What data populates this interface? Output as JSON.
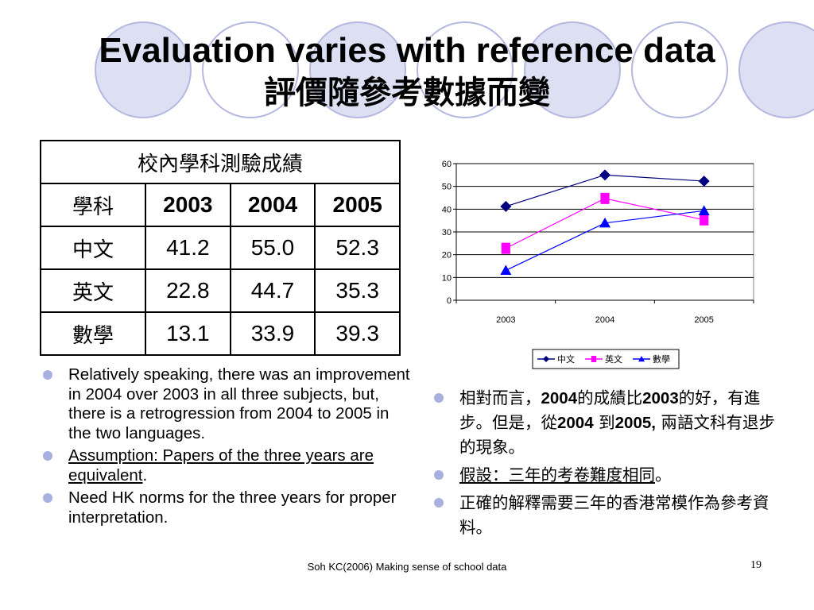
{
  "title": {
    "en": "Evaluation varies with reference data",
    "zh": "評價隨參考數據而變"
  },
  "table": {
    "caption": "校內學科測驗成績",
    "header": [
      "學科",
      "2003",
      "2004",
      "2005"
    ],
    "rows": [
      {
        "subject": "中文",
        "values": [
          "41.2",
          "55.0",
          "52.3"
        ]
      },
      {
        "subject": "英文",
        "values": [
          "22.8",
          "44.7",
          "35.3"
        ]
      },
      {
        "subject": "數學",
        "values": [
          "13.1",
          "33.9",
          "39.3"
        ]
      }
    ]
  },
  "chart_data": {
    "type": "line",
    "x": [
      "2003",
      "2004",
      "2005"
    ],
    "yticks": [
      "0",
      "10",
      "20",
      "30",
      "40",
      "50",
      "60"
    ],
    "ylim": [
      0,
      60
    ],
    "grid": true,
    "legend_position": "bottom",
    "series": [
      {
        "name": "中文",
        "values": [
          41.2,
          55.0,
          52.3
        ],
        "color": "#000080",
        "marker": "diamond"
      },
      {
        "name": "英文",
        "values": [
          22.8,
          44.7,
          35.3
        ],
        "color": "#ff00ff",
        "marker": "square"
      },
      {
        "name": "數學",
        "values": [
          13.1,
          33.9,
          39.3
        ],
        "color": "#0000ff",
        "marker": "triangle"
      }
    ]
  },
  "bullets_left": {
    "b1": "Relatively speaking, there was an improvement in 2004 over 2003 in all three subjects, but, there is a retrogression from 2004 to 2005 in the two languages.",
    "b2_underlined": "Assumption: Papers of the three years are equivalent",
    "b2_end": ".",
    "b3": "Need HK norms for the three years for proper interpretation."
  },
  "bullets_right": {
    "b1_p1": "相對而言，",
    "b1_p2": "2004",
    "b1_p3": "的成績比",
    "b1_p4": "2003",
    "b1_p5": "的好，有進步。但是，從",
    "b1_p6": "2004",
    "b1_p7": " 到",
    "b1_p8": "2005,",
    "b1_p9": " 兩語文科有退步的現象。",
    "b2_underlined": "假設：三年的考卷難度相同",
    "b2_end": "。",
    "b3": "正確的解釋需要三年的香港常模作為參考資料。"
  },
  "footer": {
    "text": "Soh KC(2006) Making sense of school data",
    "page": "19"
  },
  "colors": {
    "circle_fill": "#dde0f2",
    "circle_stroke": "#b4b8e0",
    "bullet": "#a8b0e0"
  }
}
